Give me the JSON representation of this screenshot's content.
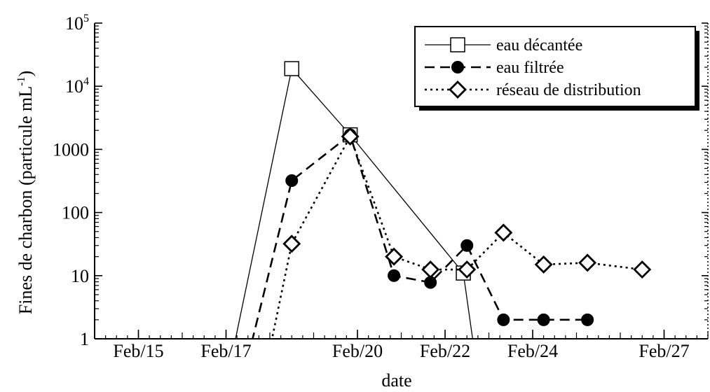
{
  "chart_data": {
    "type": "line",
    "xlabel": "date",
    "ylabel": "Fines de charbon (particule mL",
    "ylabel_sup": "-1",
    "ylabel_close": ")",
    "yscale": "log",
    "ylim": [
      1,
      100000
    ],
    "xlim": [
      "2007-02-14",
      "2007-02-28"
    ],
    "x_ticks": [
      {
        "date": "2007-02-15",
        "label": "Feb/15"
      },
      {
        "date": "2007-02-17",
        "label": "Feb/17"
      },
      {
        "date": "2007-02-20",
        "label": "Feb/20"
      },
      {
        "date": "2007-02-22",
        "label": "Feb/22"
      },
      {
        "date": "2007-02-24",
        "label": "Feb/24"
      },
      {
        "date": "2007-02-27",
        "label": "Feb/27"
      }
    ],
    "y_ticks": [
      {
        "value": 1,
        "label": "1"
      },
      {
        "value": 10,
        "label": "10"
      },
      {
        "value": 100,
        "label": "100"
      },
      {
        "value": 1000,
        "label": "1000"
      },
      {
        "value": 10000,
        "label": "10",
        "sup": "4"
      },
      {
        "value": 100000,
        "label": "10",
        "sup": "5"
      }
    ],
    "legend_position": "top-right",
    "series": [
      {
        "name": "eau décantée",
        "color": "#000000",
        "line": "solid",
        "marker": "open-square",
        "points": [
          {
            "x": "2007-02-16 22:00",
            "y": 0.1
          },
          {
            "x": "2007-02-18 12:00",
            "y": 19000
          },
          {
            "x": "2007-02-19 20:00",
            "y": 1700
          },
          {
            "x": "2007-02-22 10:00",
            "y": 11
          },
          {
            "x": "2007-02-22 20:00",
            "y": 0.1
          }
        ]
      },
      {
        "name": "eau filtrée",
        "color": "#000000",
        "line": "dashed",
        "marker": "filled-circle",
        "points": [
          {
            "x": "2007-02-17 06:00",
            "y": 0.1
          },
          {
            "x": "2007-02-18 12:00",
            "y": 320
          },
          {
            "x": "2007-02-19 20:00",
            "y": 1700
          },
          {
            "x": "2007-02-20 20:00",
            "y": 10
          },
          {
            "x": "2007-02-21 16:00",
            "y": 7.8
          },
          {
            "x": "2007-02-22 12:00",
            "y": 30
          },
          {
            "x": "2007-02-23 08:00",
            "y": 2
          },
          {
            "x": "2007-02-24 06:00",
            "y": 2
          },
          {
            "x": "2007-02-25 06:00",
            "y": 2
          }
        ]
      },
      {
        "name": "réseau de distribution",
        "color": "#000000",
        "line": "dotted",
        "marker": "open-diamond",
        "points": [
          {
            "x": "2007-02-17 18:00",
            "y": 0.1
          },
          {
            "x": "2007-02-18 12:00",
            "y": 32
          },
          {
            "x": "2007-02-19 20:00",
            "y": 1600
          },
          {
            "x": "2007-02-20 20:00",
            "y": 20
          },
          {
            "x": "2007-02-21 16:00",
            "y": 12.5
          },
          {
            "x": "2007-02-22 12:00",
            "y": 12.5
          },
          {
            "x": "2007-02-23 08:00",
            "y": 48
          },
          {
            "x": "2007-02-24 06:00",
            "y": 15
          },
          {
            "x": "2007-02-25 06:00",
            "y": 16
          },
          {
            "x": "2007-02-26 12:00",
            "y": 12.5
          }
        ]
      }
    ]
  }
}
